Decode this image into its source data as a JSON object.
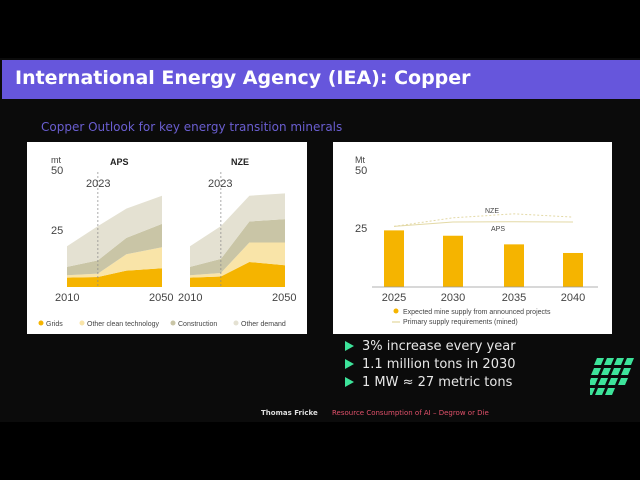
{
  "slide": {
    "title": "International Energy Agency (IEA): Copper",
    "subtitle": "Copper Outlook for key energy transition minerals",
    "bullets": [
      "3% increase every year",
      "1.1 million tons in 2030",
      "1 MW ≈ 27 metric tons"
    ],
    "footer_author": "Thomas Fricke",
    "footer_talk": "Resource Consumption of AI – Degrow or Die",
    "title_bar_color": "#6656dc",
    "bullet_color": "#3de39a",
    "logo_icon": "green-parallelogram-grid-logo"
  },
  "chart_data": [
    {
      "type": "area",
      "stacked": true,
      "ylabel": "mt",
      "ylim": [
        0,
        50
      ],
      "yticks": [
        "25",
        "50"
      ],
      "marker_year_label": "2023",
      "legend": [
        "Grids",
        "Other clean technology",
        "Construction",
        "Other demand"
      ],
      "legend_position": "bottom",
      "colors": [
        "#f5b400",
        "#f9e4a8",
        "#c9c5a6",
        "#e4e1d2"
      ],
      "panels": [
        {
          "title": "APS",
          "x": [
            2010,
            2023,
            2035,
            2050
          ],
          "xticks": [
            "2010",
            "2050"
          ],
          "series": [
            {
              "name": "Grids",
              "values": [
                4,
                4.3,
                7,
                8
              ]
            },
            {
              "name": "Other clean technology",
              "values": [
                1,
                1.4,
                7,
                9
              ]
            },
            {
              "name": "Construction",
              "values": [
                3.6,
                5.7,
                7,
                10
              ]
            },
            {
              "name": "Other demand",
              "values": [
                8.8,
                14.6,
                12.5,
                12
              ]
            }
          ]
        },
        {
          "title": "NZE",
          "x": [
            2010,
            2023,
            2035,
            2050
          ],
          "xticks": [
            "2010",
            "2050"
          ],
          "series": [
            {
              "name": "Grids",
              "values": [
                4,
                4.5,
                10.7,
                9.3
              ]
            },
            {
              "name": "Other clean technology",
              "values": [
                1,
                1.5,
                8.3,
                9.7
              ]
            },
            {
              "name": "Construction",
              "values": [
                3.6,
                6,
                9,
                10
              ]
            },
            {
              "name": "Other demand",
              "values": [
                8.8,
                14,
                11,
                11
              ]
            }
          ]
        }
      ]
    },
    {
      "type": "bar",
      "ylabel": "Mt",
      "ylim": [
        0,
        50
      ],
      "yticks": [
        "25",
        "50"
      ],
      "categories": [
        "2025",
        "2030",
        "2035",
        "2040"
      ],
      "values": [
        24.3,
        22,
        18.3,
        14.6
      ],
      "bar_color": "#f5b400",
      "lines": [
        {
          "name": "NZE",
          "values": [
            26,
            29.7,
            31.4,
            30
          ],
          "style": "dashed"
        },
        {
          "name": "APS",
          "values": [
            26,
            27.9,
            28,
            27.9
          ],
          "style": "solid"
        }
      ],
      "legend": [
        "Expected mine supply from announced projects",
        "Primary supply requirements (mined)"
      ],
      "legend_position": "bottom"
    }
  ]
}
